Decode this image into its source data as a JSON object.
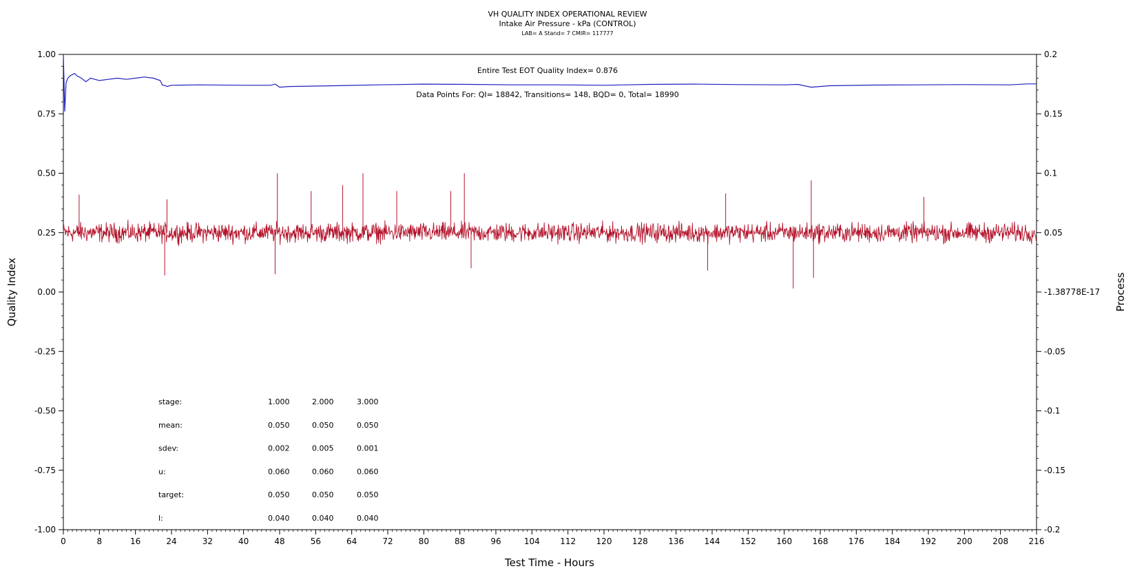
{
  "chart_data": {
    "type": "line",
    "title": "VH QUALITY INDEX OPERATIONAL REVIEW",
    "subtitle": "Intake Air Pressure - kPa (CONTROL)",
    "subsubtitle": "LAB= A Stand= 7 CMIR= 117777",
    "xlabel": "Test Time - Hours",
    "ylabel_left": "Quality Index",
    "ylabel_right": "Process",
    "xlim": [
      0,
      216
    ],
    "ylim_left": [
      -1.0,
      1.0
    ],
    "ylim_right": [
      -0.2,
      0.2
    ],
    "x_ticks": [
      "0",
      "8",
      "16",
      "24",
      "32",
      "40",
      "48",
      "56",
      "64",
      "72",
      "80",
      "88",
      "96",
      "104",
      "112",
      "120",
      "128",
      "136",
      "144",
      "152",
      "160",
      "168",
      "176",
      "184",
      "192",
      "200",
      "208",
      "216"
    ],
    "y_ticks_left": [
      "1.00",
      "0.75",
      "0.50",
      "0.25",
      "0.00",
      "-0.25",
      "-0.50",
      "-0.75",
      "-1.00"
    ],
    "y_ticks_right": [
      "0.2",
      "0.15",
      "0.1",
      "0.05",
      "-1.38778E-17",
      "-0.05",
      "-0.1",
      "-0.15",
      "-0.2"
    ],
    "grid": false,
    "annotations": {
      "eot": "Entire Test EOT Quality Index=    0.876",
      "points": "Data Points For: QI=  18842, Transitions=    148, BQD=      0, Total=  18990"
    },
    "stats_table": {
      "rows": [
        {
          "label": "stage:",
          "values": [
            "1.000",
            "2.000",
            "3.000"
          ]
        },
        {
          "label": "mean:",
          "values": [
            "0.050",
            "0.050",
            "0.050"
          ]
        },
        {
          "label": "sdev:",
          "values": [
            "0.002",
            "0.005",
            "0.001"
          ]
        },
        {
          "label": "u:",
          "values": [
            "0.060",
            "0.060",
            "0.060"
          ]
        },
        {
          "label": "target:",
          "values": [
            "0.050",
            "0.050",
            "0.050"
          ]
        },
        {
          "label": "l:",
          "values": [
            "0.040",
            "0.040",
            "0.040"
          ]
        }
      ]
    },
    "series": [
      {
        "name": "Quality Index",
        "axis": "left",
        "color": "#1f1fbf",
        "x": [
          0.0,
          0.3,
          0.6,
          1.0,
          1.5,
          2.0,
          2.5,
          3.0,
          4.0,
          5.0,
          6.0,
          7.0,
          8.0,
          10.0,
          12.0,
          14.0,
          16.0,
          18.0,
          20.0,
          21.5,
          22.0,
          22.5,
          23.0,
          24.0,
          30.0,
          40.0,
          46.0,
          47.0,
          48.0,
          50.0,
          60.0,
          70.0,
          80.0,
          90.0,
          100.0,
          110.0,
          120.0,
          125.0,
          130.0,
          140.0,
          150.0,
          160.0,
          163.0,
          166.0,
          170.0,
          180.0,
          190.0,
          200.0,
          210.0,
          214.0,
          216.0
        ],
        "y": [
          1.0,
          0.76,
          0.88,
          0.9,
          0.91,
          0.915,
          0.92,
          0.91,
          0.9,
          0.885,
          0.9,
          0.895,
          0.89,
          0.895,
          0.9,
          0.895,
          0.9,
          0.905,
          0.9,
          0.89,
          0.87,
          0.87,
          0.865,
          0.87,
          0.872,
          0.87,
          0.87,
          0.875,
          0.862,
          0.865,
          0.868,
          0.872,
          0.875,
          0.874,
          0.872,
          0.872,
          0.87,
          0.872,
          0.874,
          0.875,
          0.873,
          0.872,
          0.874,
          0.862,
          0.868,
          0.871,
          0.872,
          0.873,
          0.872,
          0.876,
          0.876
        ]
      },
      {
        "name": "Process",
        "axis": "right",
        "color": "#b3122a",
        "mean": 0.05,
        "spikes": [
          {
            "x": 3.5,
            "y": 0.082
          },
          {
            "x": 22.5,
            "y": 0.014
          },
          {
            "x": 23.0,
            "y": 0.078
          },
          {
            "x": 47.0,
            "y": 0.015
          },
          {
            "x": 47.5,
            "y": 0.1
          },
          {
            "x": 55.0,
            "y": 0.085
          },
          {
            "x": 62.0,
            "y": 0.09
          },
          {
            "x": 66.5,
            "y": 0.1
          },
          {
            "x": 74.0,
            "y": 0.085
          },
          {
            "x": 86.0,
            "y": 0.085
          },
          {
            "x": 89.0,
            "y": 0.1
          },
          {
            "x": 90.5,
            "y": 0.02
          },
          {
            "x": 147.0,
            "y": 0.083
          },
          {
            "x": 143.0,
            "y": 0.018
          },
          {
            "x": 162.0,
            "y": 0.003
          },
          {
            "x": 166.0,
            "y": 0.094
          },
          {
            "x": 166.5,
            "y": 0.012
          },
          {
            "x": 191.0,
            "y": 0.08
          }
        ]
      }
    ]
  }
}
